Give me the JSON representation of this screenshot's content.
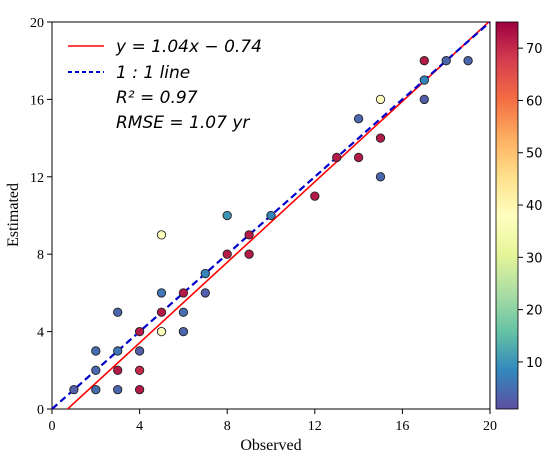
{
  "chart_data": {
    "type": "scatter",
    "xlabel": "Observed",
    "ylabel": "Estimated",
    "xlim": [
      0,
      20
    ],
    "ylim": [
      0,
      20
    ],
    "x_ticks": [
      "0",
      "4",
      "8",
      "12",
      "16",
      "20"
    ],
    "y_ticks": [
      "0",
      "4",
      "8",
      "12",
      "16",
      "20"
    ],
    "x_tick_values": [
      0,
      4,
      8,
      12,
      16,
      20
    ],
    "y_tick_values": [
      0,
      4,
      8,
      12,
      16,
      20
    ],
    "grid": false,
    "legend_position": "top-left",
    "legend": {
      "fit_label": "y = 1.04x − 0.74",
      "identity_label": "1 : 1 line",
      "r2_label": "R² = 0.97",
      "rmse_label": "RMSE = 1.07 yr"
    },
    "fit_line": {
      "slope": 1.04,
      "intercept": -0.74,
      "color": "#ff0000"
    },
    "identity_line": {
      "color": "#0000cc",
      "style": "dashed"
    },
    "colorbar": {
      "range": [
        1,
        75
      ],
      "ticks": [
        10,
        20,
        30,
        40,
        50,
        60,
        70
      ],
      "tick_labels": [
        "10",
        "20",
        "30",
        "40",
        "50",
        "60",
        "70"
      ],
      "colormap": "Spectral_r"
    },
    "points": [
      {
        "x": 1,
        "y": 1,
        "c": 3
      },
      {
        "x": 2,
        "y": 1,
        "c": 5
      },
      {
        "x": 2,
        "y": 2,
        "c": 4
      },
      {
        "x": 2,
        "y": 3,
        "c": 5
      },
      {
        "x": 3,
        "y": 1,
        "c": 4
      },
      {
        "x": 3,
        "y": 2,
        "c": 72
      },
      {
        "x": 3,
        "y": 3,
        "c": 6
      },
      {
        "x": 3,
        "y": 5,
        "c": 4
      },
      {
        "x": 4,
        "y": 1,
        "c": 72
      },
      {
        "x": 4,
        "y": 2,
        "c": 70
      },
      {
        "x": 4,
        "y": 3,
        "c": 3
      },
      {
        "x": 4,
        "y": 4,
        "c": 72
      },
      {
        "x": 5,
        "y": 4,
        "c": 38
      },
      {
        "x": 5,
        "y": 5,
        "c": 72
      },
      {
        "x": 5,
        "y": 6,
        "c": 6
      },
      {
        "x": 5,
        "y": 9,
        "c": 38
      },
      {
        "x": 6,
        "y": 4,
        "c": 4
      },
      {
        "x": 6,
        "y": 5,
        "c": 5
      },
      {
        "x": 6,
        "y": 6,
        "c": 72
      },
      {
        "x": 7,
        "y": 6,
        "c": 3
      },
      {
        "x": 7,
        "y": 7,
        "c": 8
      },
      {
        "x": 8,
        "y": 8,
        "c": 72
      },
      {
        "x": 8,
        "y": 10,
        "c": 10
      },
      {
        "x": 9,
        "y": 8,
        "c": 72
      },
      {
        "x": 9,
        "y": 9,
        "c": 72
      },
      {
        "x": 10,
        "y": 10,
        "c": 8
      },
      {
        "x": 12,
        "y": 11,
        "c": 72
      },
      {
        "x": 13,
        "y": 13,
        "c": 72
      },
      {
        "x": 14,
        "y": 13,
        "c": 72
      },
      {
        "x": 14,
        "y": 15,
        "c": 4
      },
      {
        "x": 15,
        "y": 12,
        "c": 4
      },
      {
        "x": 15,
        "y": 14,
        "c": 72
      },
      {
        "x": 15,
        "y": 16,
        "c": 38
      },
      {
        "x": 17,
        "y": 16,
        "c": 3
      },
      {
        "x": 17,
        "y": 17,
        "c": 8
      },
      {
        "x": 17,
        "y": 18,
        "c": 72
      },
      {
        "x": 18,
        "y": 18,
        "c": 4
      },
      {
        "x": 19,
        "y": 18,
        "c": 4
      }
    ]
  }
}
